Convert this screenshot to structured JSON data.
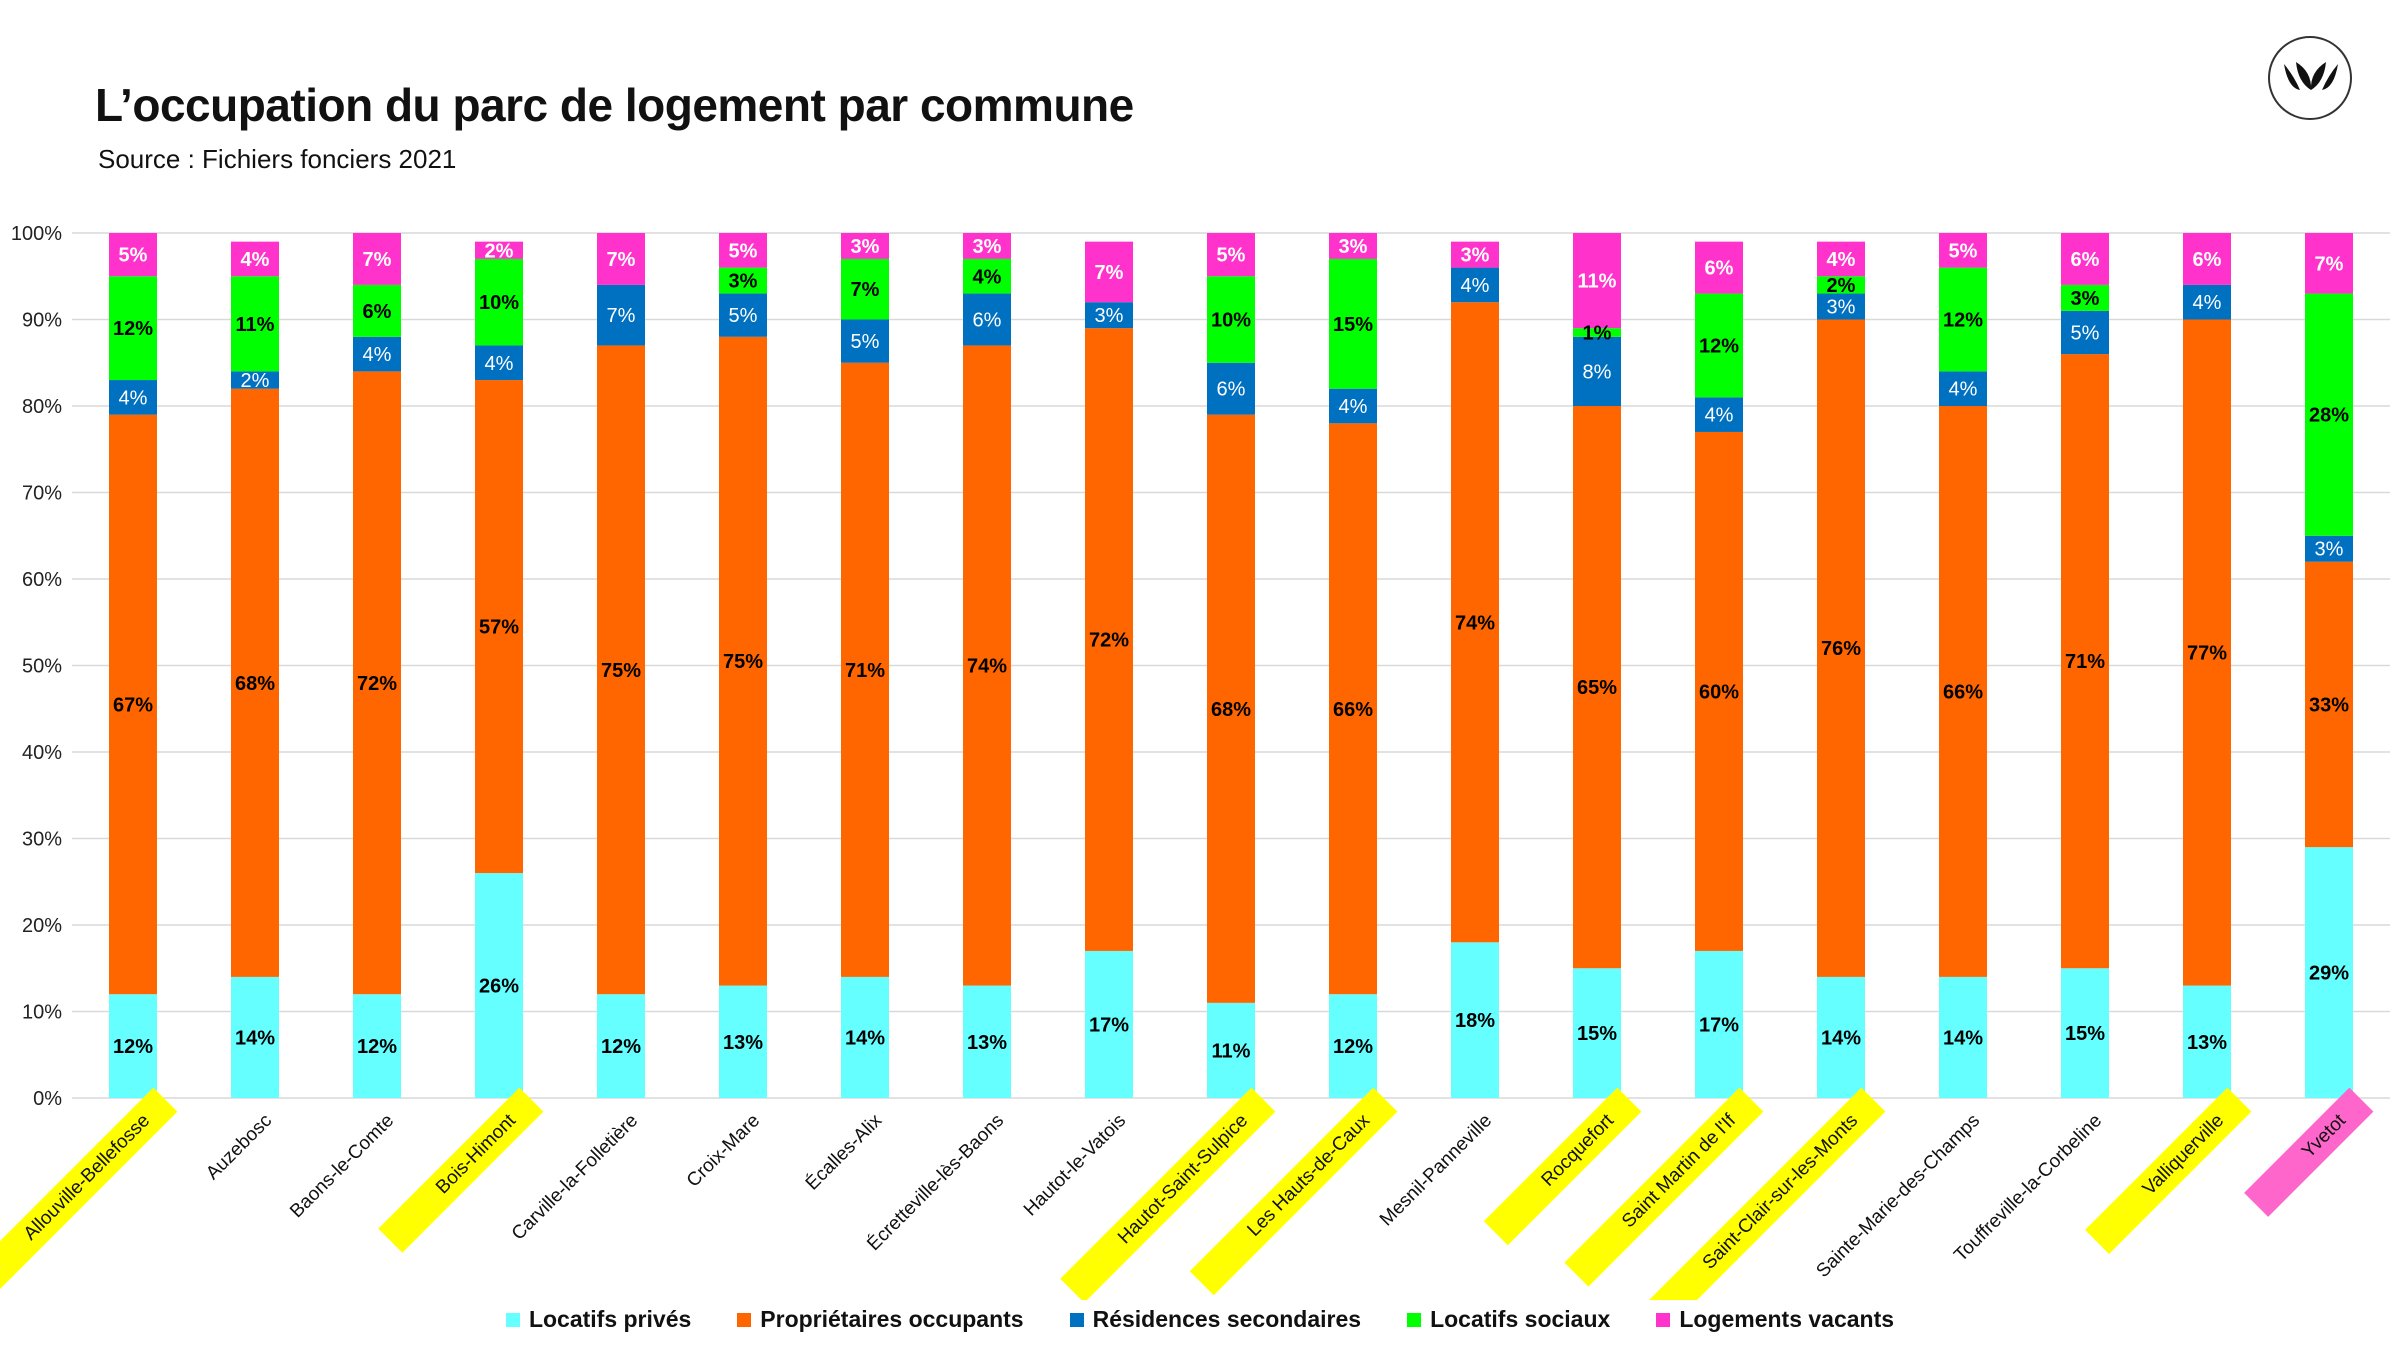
{
  "title": "L’occupation du parc de logement par commune",
  "subtitle": "Source : Fichiers fonciers 2021",
  "chart_data": {
    "type": "bar",
    "stacked": true,
    "ylim": [
      0,
      100
    ],
    "y_ticks": [
      "0%",
      "10%",
      "20%",
      "30%",
      "40%",
      "50%",
      "60%",
      "70%",
      "80%",
      "90%",
      "100%"
    ],
    "grid": true,
    "legend_position": "bottom",
    "categories": [
      "Allouville-Bellefosse",
      "Auzebosc",
      "Baons-le-Comte",
      "Bois-Himont",
      "Carville-la-Folletière",
      "Croix-Mare",
      "Écalles-Alix",
      "Écretteville-lès-Baons",
      "Hautot-le-Vatois",
      "Hautot-Saint-Sulpice",
      "Les Hauts-de-Caux",
      "Mesnil-Panneville",
      "Rocquefort",
      "Saint Martin de l'If",
      "Saint-Clair-sur-les-Monts",
      "Sainte-Marie-des-Champs",
      "Touffreville-la-Corbeline",
      "Valliquerville",
      "Yvetot"
    ],
    "category_highlights": [
      "#ffff00",
      null,
      null,
      "#ffff00",
      null,
      null,
      null,
      null,
      null,
      "#ffff00",
      "#ffff00",
      null,
      "#ffff00",
      "#ffff00",
      "#ffff00",
      null,
      null,
      "#ffff00",
      "#ff66cc"
    ],
    "series": [
      {
        "name": "Locatifs privés",
        "color": "#66ffff",
        "values": [
          12,
          14,
          12,
          26,
          12,
          13,
          14,
          13,
          17,
          11,
          12,
          18,
          15,
          17,
          14,
          14,
          15,
          13,
          29
        ],
        "labels": [
          "12%",
          "14%",
          "12%",
          "26%",
          "12%",
          "13%",
          "14%",
          "13%",
          "17%",
          "11%",
          "12%",
          "18%",
          "15%",
          "17%",
          "14%",
          "14%",
          "15%",
          "13%",
          "29%"
        ]
      },
      {
        "name": "Propriétaires occupants",
        "color": "#ff6600",
        "values": [
          67,
          68,
          72,
          57,
          75,
          75,
          71,
          74,
          72,
          68,
          66,
          74,
          65,
          60,
          76,
          66,
          71,
          77,
          33
        ],
        "labels": [
          "67%",
          "68%",
          "72%",
          "57%",
          "75%",
          "75%",
          "71%",
          "74%",
          "72%",
          "68%",
          "66%",
          "74%",
          "65%",
          "60%",
          "76%",
          "66%",
          "71%",
          "77%",
          "33%"
        ]
      },
      {
        "name": "Résidences secondaires",
        "color": "#0070c0",
        "values": [
          4,
          2,
          4,
          4,
          7,
          5,
          5,
          6,
          3,
          6,
          4,
          4,
          8,
          4,
          3,
          4,
          5,
          4,
          3
        ],
        "labels": [
          "4%",
          "2%",
          "4%",
          "4%",
          "7%",
          "5%",
          "5%",
          "6%",
          "3%",
          "6%",
          "4%",
          "4%",
          "8%",
          "4%",
          "3%",
          "4%",
          "5%",
          "4%",
          "3%"
        ]
      },
      {
        "name": "Locatifs sociaux",
        "color": "#00ff00",
        "values": [
          12,
          11,
          6,
          10,
          0,
          3,
          7,
          4,
          0,
          10,
          15,
          0,
          1,
          12,
          2,
          12,
          3,
          0,
          28
        ],
        "labels": [
          "12%",
          "11%",
          "6%",
          "10%",
          "",
          "3%",
          "7%",
          "4%",
          "",
          "10%",
          "15%",
          "",
          "1%",
          "12%",
          "2%",
          "12%",
          "3%",
          "",
          "28%"
        ]
      },
      {
        "name": "Logements vacants",
        "color": "#ff33cc",
        "values": [
          5,
          4,
          7,
          2,
          7,
          5,
          3,
          3,
          7,
          5,
          3,
          3,
          11,
          6,
          4,
          5,
          6,
          6,
          7
        ],
        "labels": [
          "5%",
          "4%",
          "7%",
          "2%",
          "7%",
          "5%",
          "3%",
          "3%",
          "7%",
          "5%",
          "3%",
          "3%",
          "11%",
          "6%",
          "4%",
          "5%",
          "6%",
          "6%",
          "7%"
        ]
      }
    ]
  }
}
